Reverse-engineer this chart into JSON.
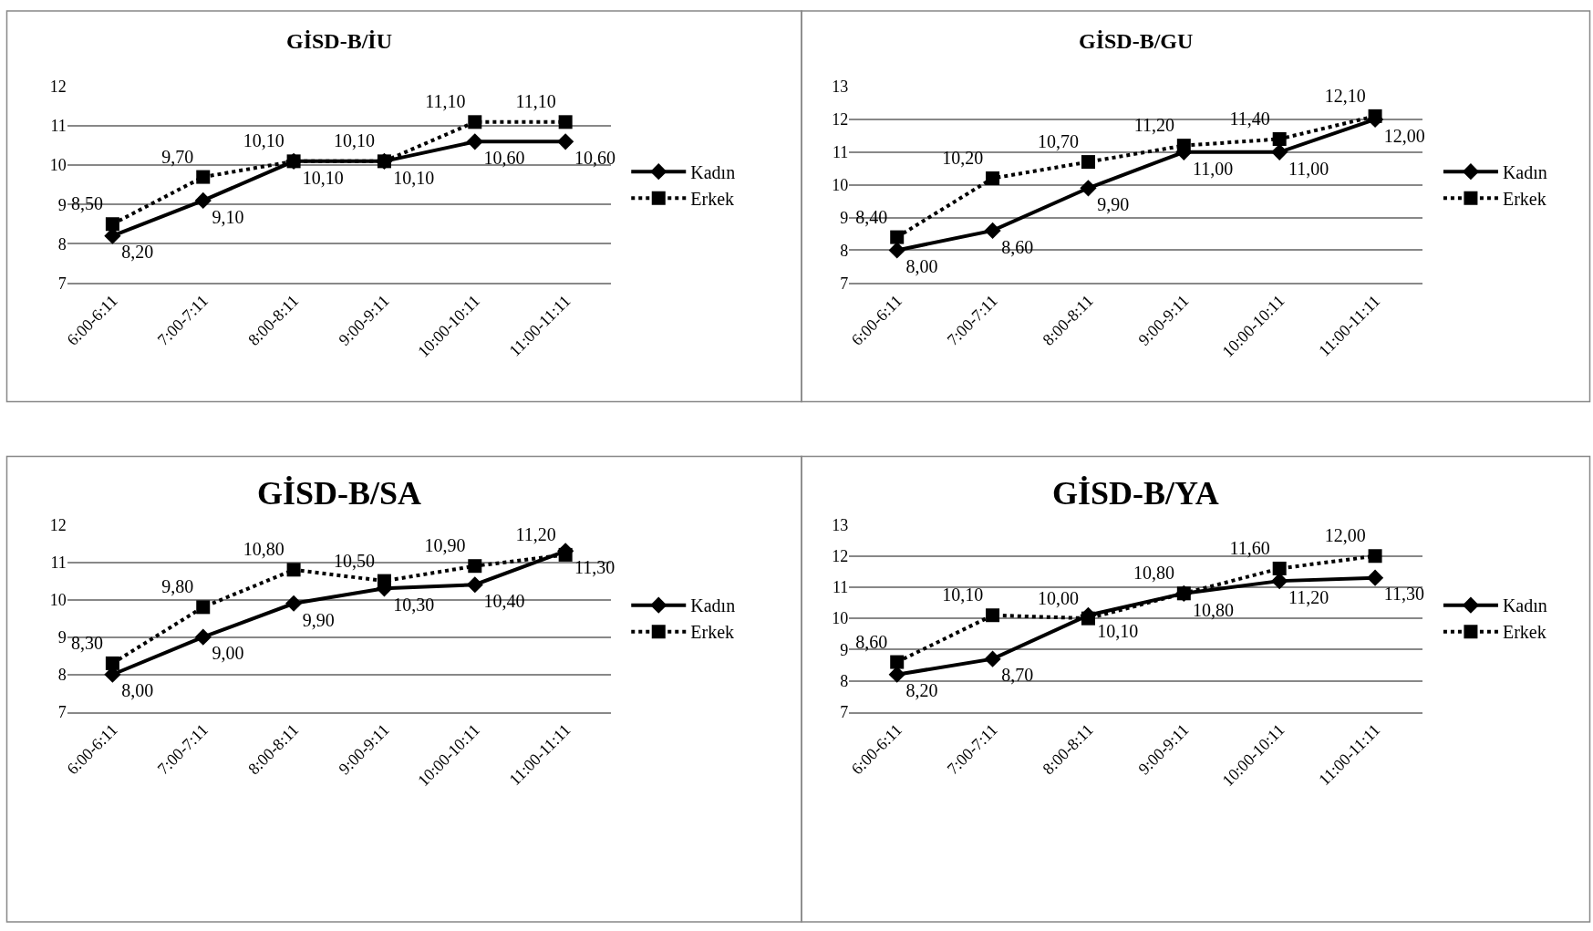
{
  "chart_data": [
    {
      "type": "line",
      "title": "GİSD-B/İU",
      "categories": [
        "6:00-6:11",
        "7:00-7:11",
        "8:00-8:11",
        "9:00-9:11",
        "10:00-10:11",
        "11:00-11:11"
      ],
      "ylim": [
        7,
        12
      ],
      "yticks": [
        7,
        8,
        9,
        10,
        11,
        12
      ],
      "grid": "y",
      "legend": "right",
      "series": [
        {
          "name": "Kadın",
          "color": "#000000",
          "marker": "diamond",
          "line_style": "solid",
          "values": [
            8.2,
            9.1,
            10.1,
            10.1,
            10.6,
            10.6
          ],
          "value_labels": [
            "8,20",
            "9,10",
            "10,10",
            "10,10",
            "10,60",
            "10,60"
          ]
        },
        {
          "name": "Erkek",
          "color": "#000000",
          "marker": "square",
          "line_style": "dotted",
          "values": [
            8.5,
            9.7,
            10.1,
            10.1,
            11.1,
            11.1
          ],
          "value_labels": [
            "8,50",
            "9,70",
            "10,10",
            "10,10",
            "11,10",
            "11,10"
          ]
        }
      ]
    },
    {
      "type": "line",
      "title": "GİSD-B/GU",
      "categories": [
        "6:00-6:11",
        "7:00-7:11",
        "8:00-8:11",
        "9:00-9:11",
        "10:00-10:11",
        "11:00-11:11"
      ],
      "ylim": [
        7,
        13
      ],
      "yticks": [
        7,
        8,
        9,
        10,
        11,
        12,
        13
      ],
      "grid": "y",
      "legend": "right",
      "series": [
        {
          "name": "Kadın",
          "color": "#000000",
          "marker": "diamond",
          "line_style": "solid",
          "values": [
            8.0,
            8.6,
            9.9,
            11.0,
            11.0,
            12.0
          ],
          "value_labels": [
            "8,00",
            "8,60",
            "9,90",
            "11,00",
            "11,00",
            "12,00"
          ]
        },
        {
          "name": "Erkek",
          "color": "#000000",
          "marker": "square",
          "line_style": "dotted",
          "values": [
            8.4,
            10.2,
            10.7,
            11.2,
            11.4,
            12.1
          ],
          "value_labels": [
            "8,40",
            "10,20",
            "10,70",
            "11,20",
            "11,40",
            "12,10"
          ]
        }
      ]
    },
    {
      "type": "line",
      "title": "GİSD-B/SA",
      "categories": [
        "6:00-6:11",
        "7:00-7:11",
        "8:00-8:11",
        "9:00-9:11",
        "10:00-10:11",
        "11:00-11:11"
      ],
      "ylim": [
        7,
        12
      ],
      "yticks": [
        7,
        8,
        9,
        10,
        11,
        12
      ],
      "grid": "y",
      "legend": "right",
      "series": [
        {
          "name": "Kadın",
          "color": "#000000",
          "marker": "diamond",
          "line_style": "solid",
          "values": [
            8.0,
            9.0,
            9.9,
            10.3,
            10.4,
            11.3
          ],
          "value_labels": [
            "8,00",
            "9,00",
            "9,90",
            "10,30",
            "10,40",
            "11,30"
          ]
        },
        {
          "name": "Erkek",
          "color": "#000000",
          "marker": "square",
          "line_style": "dotted",
          "values": [
            8.3,
            9.8,
            10.8,
            10.5,
            10.9,
            11.2
          ],
          "value_labels": [
            "8,30",
            "9,80",
            "10,80",
            "10,50",
            "10,90",
            "11,20"
          ]
        }
      ]
    },
    {
      "type": "line",
      "title": "GİSD-B/YA",
      "categories": [
        "6:00-6:11",
        "7:00-7:11",
        "8:00-8:11",
        "9:00-9:11",
        "10:00-10:11",
        "11:00-11:11"
      ],
      "ylim": [
        7,
        13
      ],
      "yticks": [
        7,
        8,
        9,
        10,
        11,
        12,
        13
      ],
      "grid": "y",
      "legend": "right",
      "series": [
        {
          "name": "Kadın",
          "color": "#000000",
          "marker": "diamond",
          "line_style": "solid",
          "values": [
            8.2,
            8.7,
            10.1,
            10.8,
            11.2,
            11.3
          ],
          "value_labels": [
            "8,20",
            "8,70",
            "10,10",
            "10,80",
            "11,20",
            "11,30"
          ]
        },
        {
          "name": "Erkek",
          "color": "#000000",
          "marker": "square",
          "line_style": "dotted",
          "values": [
            8.6,
            10.1,
            10.0,
            10.8,
            11.6,
            12.0
          ],
          "value_labels": [
            "8,60",
            "10,10",
            "10,00",
            "10,80",
            "11,60",
            "12,00"
          ]
        }
      ]
    }
  ]
}
